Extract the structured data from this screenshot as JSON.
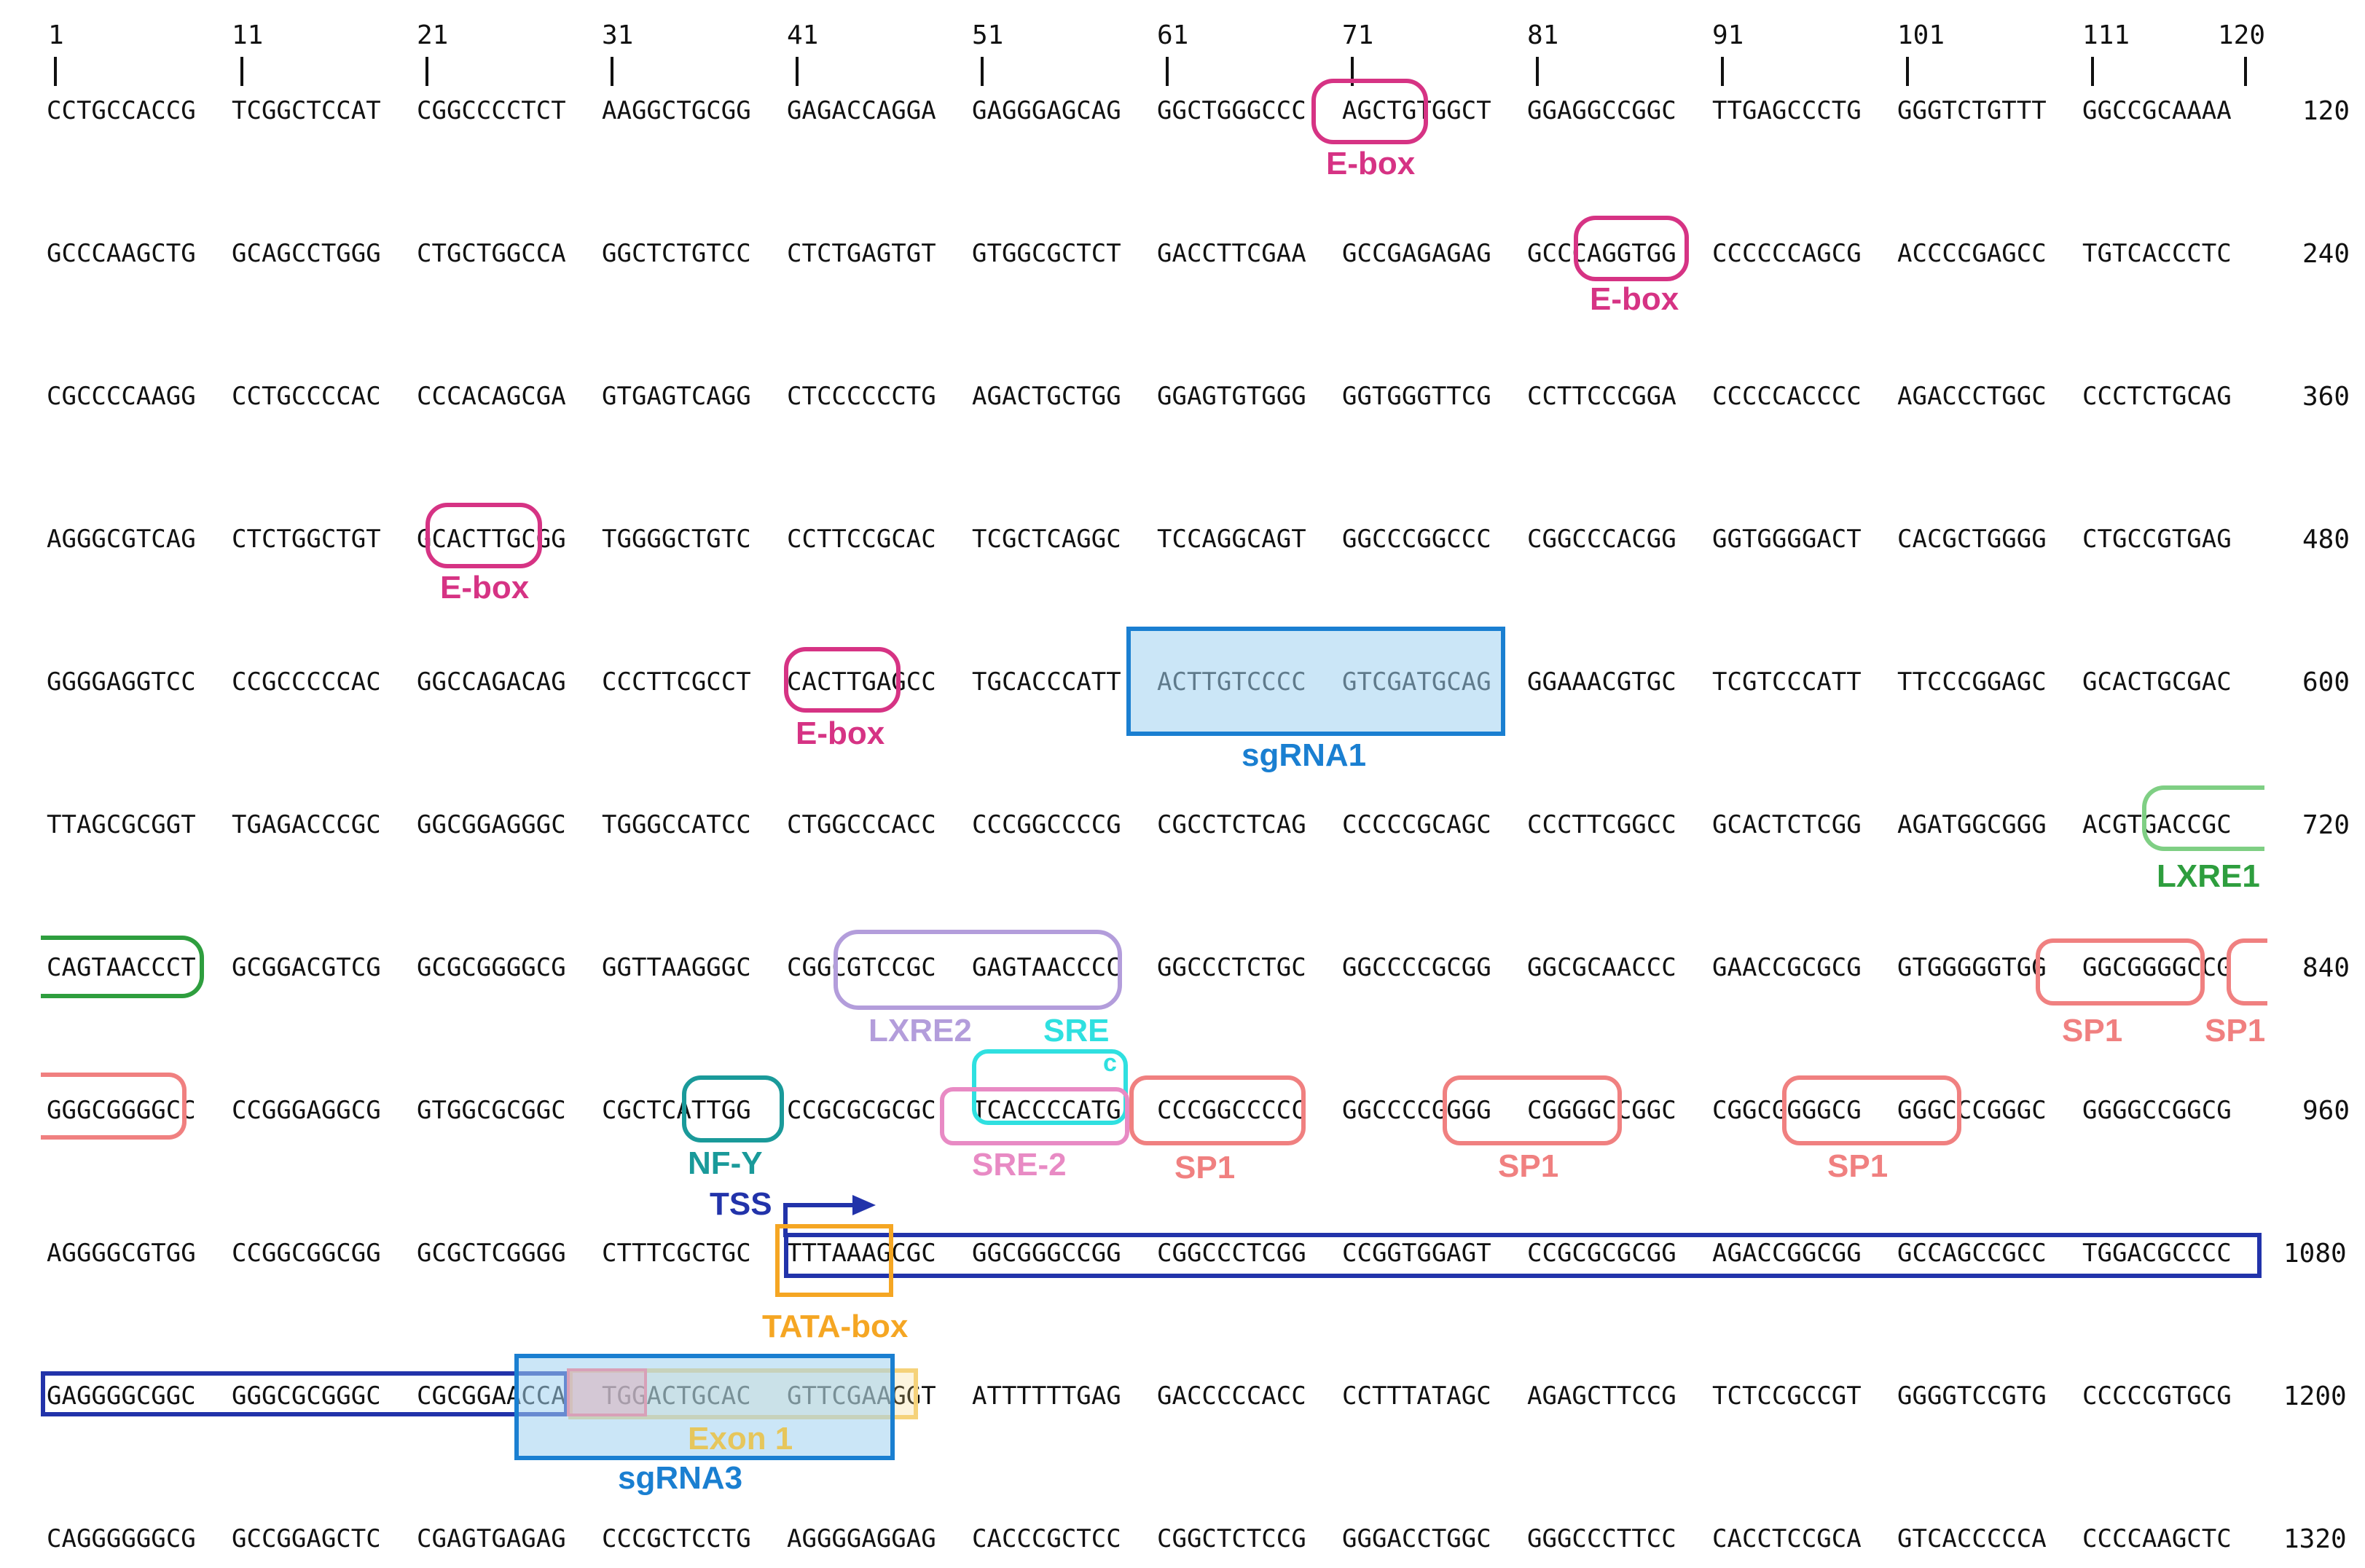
{
  "ruler": [
    "1",
    "11",
    "21",
    "31",
    "41",
    "51",
    "61",
    "71",
    "81",
    "91",
    "101",
    "111",
    "120"
  ],
  "rows": [
    {
      "blocks": [
        "CCTGCCACCG",
        "TCGGCTCCAT",
        "CGGCCCCTCT",
        "AAGGCTGCGG",
        "GAGACCAGGA",
        "GAGGGAGCAG",
        "GGCTGGGCCC",
        "AGCTGTGGCT",
        "GGAGGCCGGC",
        "TTGAGCCCTG",
        "GGGTCTGTTT",
        "GGCCGCAAAA"
      ],
      "end": "120"
    },
    {
      "blocks": [
        "GCCCAAGCTG",
        "GCAGCCTGGG",
        "CTGCTGGCCA",
        "GGCTCTGTCC",
        "CTCTGAGTGT",
        "GTGGCGCTCT",
        "GACCTTCGAA",
        "GCCGAGAGAG",
        "GCCCAGGTGG",
        "CCCCCCAGCG",
        "ACCCCGAGCC",
        "TGTCACCCTC"
      ],
      "end": "240"
    },
    {
      "blocks": [
        "CGCCCCAAGG",
        "CCTGCCCCAC",
        "CCCACAGCGA",
        "GTGAGTCAGG",
        "CTCCCCCCTG",
        "AGACTGCTGG",
        "GGAGTGTGGG",
        "GGTGGGTTCG",
        "CCTTCCCGGA",
        "CCCCCACCCC",
        "AGACCCTGGC",
        "CCCTCTGCAG"
      ],
      "end": "360"
    },
    {
      "blocks": [
        "AGGGCGTCAG",
        "CTCTGGCTGT",
        "GCACTTGCGG",
        "TGGGGCTGTC",
        "CCTTCCGCAC",
        "TCGCTCAGGC",
        "TCCAGGCAGT",
        "GGCCCGGCCC",
        "CGGCCCACGG",
        "GGTGGGGACT",
        "CACGCTGGGG",
        "CTGCCGTGAG"
      ],
      "end": "480"
    },
    {
      "blocks": [
        "GGGGAGGTCC",
        "CCGCCCCCAC",
        "GGCCAGACAG",
        "CCCTTCGCCT",
        "CACTTGAGCC",
        "TGCACCCATT",
        "ACTTGTCCCC",
        "GTCGATGCAG",
        "GGAAACGTGC",
        "TCGTCCCATT",
        "TTCCCGGAGC",
        "GCACTGCGAC"
      ],
      "end": "600"
    },
    {
      "blocks": [
        "TTAGCGCGGT",
        "TGAGACCCGC",
        "GGCGGAGGGC",
        "TGGGCCATCC",
        "CTGGCCCACC",
        "CCCGGCCCCG",
        "CGCCTCTCAG",
        "CCCCCGCAGC",
        "CCCTTCGGCC",
        "GCACTCTCGG",
        "AGATGGCGGG",
        "ACGTGACCGC"
      ],
      "end": "720"
    },
    {
      "blocks": [
        "CAGTAACCCT",
        "GCGGACGTCG",
        "GCGCGGGGCG",
        "GGTTAAGGGC",
        "CGGCGTCCGC",
        "GAGTAACCCC",
        "GGCCCTCTGC",
        "GGCCCCGCGG",
        "GGCGCAACCC",
        "GAACCGCGCG",
        "GTGGGGGTGG",
        "GGCGGGGCCG"
      ],
      "end": "840"
    },
    {
      "blocks": [
        "GGGCGGGGCC",
        "CCGGGAGGCG",
        "GTGGCGCGGC",
        "CGCTCATTGG",
        "CCGCGCGCGC",
        "TCACCCCATG",
        "CCCGGCCCCC",
        "GGCCCCGGGG",
        "CGGGGCCGGC",
        "CGGCGGGGCG",
        "GGGCCCGGGC",
        "GGGGCCGGCG"
      ],
      "end": "960"
    },
    {
      "blocks": [
        "AGGGGCGTGG",
        "CCGGCGGCGG",
        "GCGCTCGGGG",
        "CTTTCGCTGC",
        "TTTAAAGCGC",
        "GGCGGGCCGG",
        "CGGCCCTCGG",
        "CCGGTGGAGT",
        "CCGCGCGCGG",
        "AGACCGGCGG",
        "GCCAGCCGCC",
        "TGGACGCCCC"
      ],
      "end": "1080"
    },
    {
      "blocks": [
        "GAGGGGCGGC",
        "GGGCGCGGGC",
        "CGCGGAACCA",
        "TGGACTGCAC",
        "GTTCGAAGGT",
        "ATTTTTTGAG",
        "GACCCCCACC",
        "CCTTTATAGC",
        "AGAGCTTCCG",
        "TCTCCGCCGT",
        "GGGGTCCGTG",
        "CCCCCGTGCG"
      ],
      "end": "1200"
    },
    {
      "blocks": [
        "CAGGGGGGCG",
        "GCCGGAGCTC",
        "CGAGTGAGAG",
        "CCCGCTCCTG",
        "AGGGGAGGAG",
        "CACCCGCTCC",
        "CGGCTCTCCG",
        "GGGACCTGGC",
        "GGGCCCTTCC",
        "CACCTCCGCA",
        "GTCACCCCCA",
        "CCCCAAGCTC"
      ],
      "end": "1320"
    }
  ],
  "annotations": {
    "ebox": "E-box",
    "sgrna1": "sgRNA1",
    "lxre1": "LXRE1",
    "lxre2": "LXRE2",
    "sre": "SRE",
    "sre_c": "c",
    "sp1": "SP1",
    "nfy": "NF-Y",
    "sre2": "SRE-2",
    "tss": "TSS",
    "tata": "TATA-box",
    "exon1": "Exon 1",
    "sgrna3": "sgRNA3"
  },
  "colors": {
    "ebox": "#d63384",
    "sgrna": "#1a7fd1",
    "sgrna_fill": "#bfe2f5",
    "lxre1": "#2e9e3e",
    "lxre1_light": "#7fcf84",
    "lxre2": "#b39ddb",
    "sre": "#2fe0e0",
    "sp1": "#f08080",
    "nfy": "#1a9a9a",
    "sre2": "#e88ac4",
    "tss": "#2233aa",
    "exon": "#2233aa",
    "tata": "#f5a623",
    "exon1_label": "#e6c65c"
  }
}
